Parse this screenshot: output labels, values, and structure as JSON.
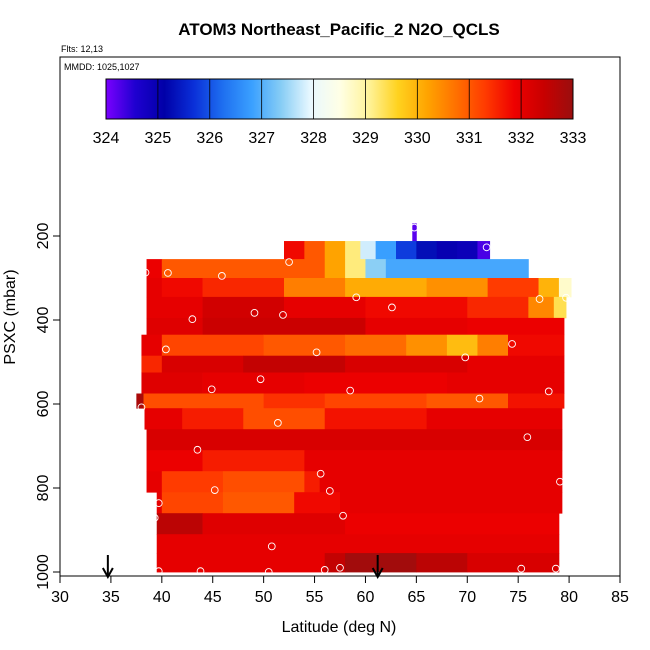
{
  "chart_data": {
    "type": "heatmap",
    "title": "ATOM3 Northeast_Pacific_2 N2O_QCLS",
    "flights_label": "Flts: 12,13",
    "dates_label": "MMDD: 1025,1027",
    "xlabel": "Latitude (deg N)",
    "ylabel": "PSXC (mbar)",
    "xlim": [
      30,
      85
    ],
    "ylim": [
      1000,
      0
    ],
    "x_ticks": [
      "30",
      "35",
      "40",
      "45",
      "50",
      "55",
      "60",
      "65",
      "70",
      "75",
      "80",
      "85"
    ],
    "y_ticks": [
      "200",
      "400",
      "600",
      "800",
      "1000"
    ],
    "colorbar": {
      "min": 324,
      "max": 333,
      "tick_labels": [
        "324",
        "325",
        "326",
        "327",
        "328",
        "329",
        "330",
        "331",
        "332",
        "333"
      ],
      "stops": [
        "#7a00ff",
        "#1f00d0",
        "#0000a8",
        "#0a2fd8",
        "#1e6ff0",
        "#3aa0ff",
        "#87cdf5",
        "#e8f8ff",
        "#ffffe6",
        "#fff39a",
        "#ffd21f",
        "#ffa400",
        "#ff7000",
        "#ff3a00",
        "#ee0000",
        "#c80000",
        "#9a0e0e"
      ]
    },
    "profile_markers": {
      "label_positions": [
        34.7,
        61.2
      ]
    },
    "bands": [
      {
        "p_top": 170,
        "p_bot": 212,
        "segments": [
          [
            64.6,
            65.0,
            324.2
          ]
        ]
      },
      {
        "p_top": 212,
        "p_bot": 255,
        "segments": [
          [
            52.0,
            54.0,
            331.8
          ],
          [
            54.0,
            56.0,
            331.0
          ],
          [
            56.0,
            58.0,
            330.2
          ],
          [
            58.0,
            59.5,
            329.2
          ],
          [
            59.5,
            61.0,
            327.8
          ],
          [
            61.0,
            63.0,
            326.8
          ],
          [
            63.0,
            65.0,
            325.8
          ],
          [
            65.0,
            67.0,
            325.3
          ],
          [
            67.0,
            69.0,
            325.0
          ],
          [
            69.0,
            71.0,
            324.9
          ],
          [
            71.0,
            72.2,
            324.3
          ]
        ]
      },
      {
        "p_top": 255,
        "p_bot": 300,
        "segments": [
          [
            38.5,
            40.0,
            331.9
          ],
          [
            40.0,
            56.0,
            331.0
          ],
          [
            56.0,
            58.0,
            330.2
          ],
          [
            58.0,
            60.0,
            329.2
          ],
          [
            60.0,
            62.0,
            327.4
          ],
          [
            62.0,
            76.0,
            326.9
          ]
        ]
      },
      {
        "p_top": 300,
        "p_bot": 345,
        "segments": [
          [
            38.5,
            40.0,
            332.0
          ],
          [
            40.0,
            44.0,
            331.8
          ],
          [
            44.0,
            52.0,
            331.5
          ],
          [
            52.0,
            58.0,
            330.6
          ],
          [
            58.0,
            66.0,
            330.1
          ],
          [
            66.0,
            72.0,
            330.4
          ],
          [
            72.0,
            77.0,
            331.3
          ],
          [
            77.0,
            79.0,
            330.0
          ],
          [
            79.0,
            80.2,
            328.7
          ]
        ]
      },
      {
        "p_top": 345,
        "p_bot": 395,
        "segments": [
          [
            38.5,
            44.0,
            332.0
          ],
          [
            44.0,
            52.0,
            332.3
          ],
          [
            52.0,
            60.0,
            332.0
          ],
          [
            60.0,
            70.0,
            331.8
          ],
          [
            70.0,
            76.0,
            331.5
          ],
          [
            76.0,
            78.5,
            330.5
          ],
          [
            78.5,
            79.7,
            329.4
          ]
        ]
      },
      {
        "p_top": 395,
        "p_bot": 435,
        "segments": [
          [
            38.5,
            44.0,
            332.1
          ],
          [
            44.0,
            60.0,
            332.4
          ],
          [
            60.0,
            70.0,
            332.0
          ],
          [
            70.0,
            79.5,
            331.9
          ]
        ]
      },
      {
        "p_top": 435,
        "p_bot": 485,
        "segments": [
          [
            38.0,
            40.0,
            332.0
          ],
          [
            40.0,
            50.0,
            331.2
          ],
          [
            50.0,
            58.0,
            331.0
          ],
          [
            58.0,
            64.0,
            330.8
          ],
          [
            64.0,
            68.0,
            330.4
          ],
          [
            68.0,
            71.0,
            329.9
          ],
          [
            71.0,
            74.0,
            330.6
          ],
          [
            74.0,
            79.5,
            331.8
          ]
        ]
      },
      {
        "p_top": 485,
        "p_bot": 525,
        "segments": [
          [
            38.0,
            40.0,
            331.5
          ],
          [
            40.0,
            48.0,
            332.2
          ],
          [
            48.0,
            58.0,
            332.5
          ],
          [
            58.0,
            70.0,
            332.2
          ],
          [
            70.0,
            79.5,
            332.0
          ]
        ]
      },
      {
        "p_top": 525,
        "p_bot": 575,
        "segments": [
          [
            38.0,
            44.0,
            332.1
          ],
          [
            44.0,
            54.0,
            332.0
          ],
          [
            54.0,
            68.0,
            331.9
          ],
          [
            68.0,
            79.5,
            332.0
          ]
        ]
      },
      {
        "p_top": 575,
        "p_bot": 610,
        "segments": [
          [
            37.5,
            38.2,
            332.8
          ],
          [
            38.2,
            50.0,
            331.1
          ],
          [
            50.0,
            56.0,
            331.4
          ],
          [
            56.0,
            66.0,
            331.2
          ],
          [
            66.0,
            74.0,
            331.0
          ],
          [
            74.0,
            79.5,
            331.7
          ]
        ]
      },
      {
        "p_top": 610,
        "p_bot": 660,
        "segments": [
          [
            38.3,
            42.0,
            332.0
          ],
          [
            42.0,
            48.0,
            331.6
          ],
          [
            48.0,
            56.0,
            331.1
          ],
          [
            56.0,
            66.0,
            331.7
          ],
          [
            66.0,
            79.3,
            332.0
          ]
        ]
      },
      {
        "p_top": 660,
        "p_bot": 710,
        "segments": [
          [
            38.5,
            79.3,
            332.2
          ]
        ]
      },
      {
        "p_top": 710,
        "p_bot": 760,
        "segments": [
          [
            38.5,
            44.0,
            331.9
          ],
          [
            44.0,
            54.0,
            331.6
          ],
          [
            54.0,
            79.3,
            332.0
          ]
        ]
      },
      {
        "p_top": 760,
        "p_bot": 810,
        "segments": [
          [
            38.5,
            40.0,
            332.0
          ],
          [
            40.0,
            46.0,
            331.3
          ],
          [
            46.0,
            54.0,
            331.1
          ],
          [
            54.0,
            55.5,
            331.6
          ],
          [
            55.5,
            79.3,
            332.0
          ]
        ]
      },
      {
        "p_top": 810,
        "p_bot": 860,
        "segments": [
          [
            39.5,
            40.0,
            332.0
          ],
          [
            40.0,
            46.0,
            331.2
          ],
          [
            46.0,
            53.0,
            331.0
          ],
          [
            53.0,
            57.5,
            331.8
          ],
          [
            57.5,
            79.3,
            332.0
          ]
        ]
      },
      {
        "p_top": 860,
        "p_bot": 910,
        "segments": [
          [
            39.5,
            44.0,
            332.6
          ],
          [
            44.0,
            58.0,
            332.1
          ],
          [
            58.0,
            79.0,
            331.9
          ]
        ]
      },
      {
        "p_top": 910,
        "p_bot": 955,
        "segments": [
          [
            39.5,
            79.0,
            332.0
          ]
        ]
      },
      {
        "p_top": 955,
        "p_bot": 1000,
        "segments": [
          [
            39.5,
            56.0,
            332.0
          ],
          [
            56.0,
            58.0,
            332.5
          ],
          [
            58.0,
            65.0,
            332.9
          ],
          [
            65.0,
            70.0,
            332.6
          ],
          [
            70.0,
            79.0,
            332.2
          ]
        ]
      }
    ],
    "points": [
      [
        64.8,
        180
      ],
      [
        71.9,
        227
      ],
      [
        52.5,
        262
      ],
      [
        38.4,
        287
      ],
      [
        40.6,
        288
      ],
      [
        45.9,
        295
      ],
      [
        59.1,
        346
      ],
      [
        77.1,
        350
      ],
      [
        79.7,
        347
      ],
      [
        62.6,
        370
      ],
      [
        49.1,
        383
      ],
      [
        51.9,
        388
      ],
      [
        43.0,
        398
      ],
      [
        40.4,
        470
      ],
      [
        55.2,
        477
      ],
      [
        69.8,
        489
      ],
      [
        74.4,
        457
      ],
      [
        49.7,
        541
      ],
      [
        44.9,
        565
      ],
      [
        58.5,
        568
      ],
      [
        78.0,
        570
      ],
      [
        38.0,
        608
      ],
      [
        71.2,
        587
      ],
      [
        51.4,
        645
      ],
      [
        75.9,
        679
      ],
      [
        43.5,
        709
      ],
      [
        55.6,
        766
      ],
      [
        56.5,
        807
      ],
      [
        45.2,
        805
      ],
      [
        79.1,
        785
      ],
      [
        39.7,
        836
      ],
      [
        57.8,
        866
      ],
      [
        39.3,
        871
      ],
      [
        50.8,
        939
      ],
      [
        78.7,
        992
      ],
      [
        75.3,
        992
      ],
      [
        57.5,
        990
      ],
      [
        56.0,
        995
      ],
      [
        43.8,
        998
      ],
      [
        39.7,
        998
      ],
      [
        50.5,
        1000
      ]
    ]
  }
}
